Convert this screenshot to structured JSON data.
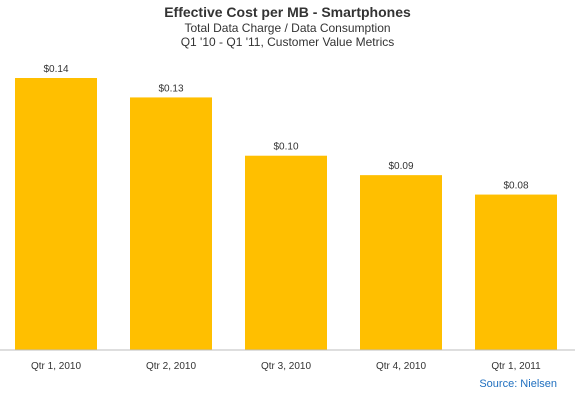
{
  "chart_data": {
    "type": "bar",
    "title": "Effective Cost per MB - Smartphones",
    "subtitle_lines": [
      "Total Data Charge / Data Consumption",
      "Q1 '10 - Q1 '11, Customer Value Metrics"
    ],
    "categories": [
      "Qtr 1, 2010",
      "Qtr 2, 2010",
      "Qtr 3, 2010",
      "Qtr 4, 2010",
      "Qtr 1, 2011"
    ],
    "values": [
      0.14,
      0.13,
      0.1,
      0.09,
      0.08
    ],
    "value_labels": [
      "$0.14",
      "$0.13",
      "$0.10",
      "$0.09",
      "$0.08"
    ],
    "xlabel": "",
    "ylabel": "",
    "ylim": [
      0,
      0.16
    ],
    "grid": false,
    "legend": "none",
    "bar_color": "#ffbf00",
    "source": "Source: Nielsen"
  }
}
